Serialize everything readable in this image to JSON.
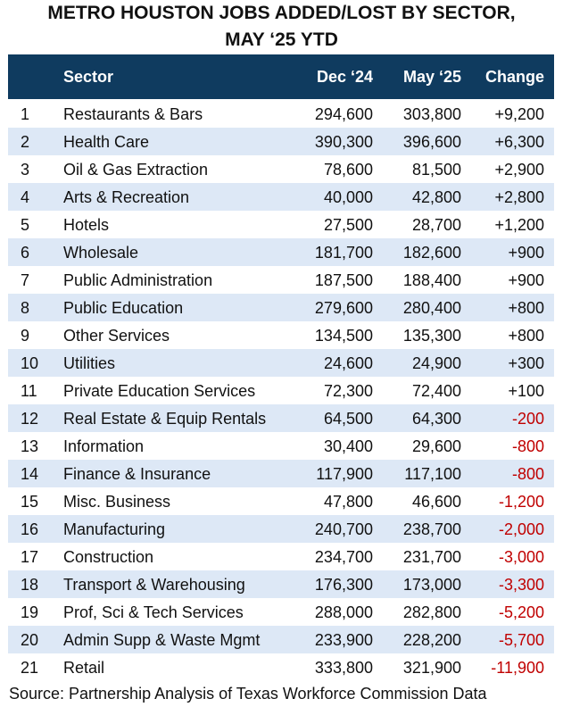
{
  "title_line1": "METRO HOUSTON JOBS ADDED/LOST BY SECTOR,",
  "title_line2": "MAY ‘25 YTD",
  "colors": {
    "header_bg": "#0f3b5f",
    "alt_row": "#dde8f6",
    "negative": "#c00000"
  },
  "chart_data": {
    "type": "table",
    "columns": [
      "",
      "Sector",
      "Dec ‘24",
      "May ‘25",
      "Change"
    ],
    "rows": [
      [
        "1",
        "Restaurants & Bars",
        "294,600",
        "303,800",
        "+9,200"
      ],
      [
        "2",
        "Health Care",
        "390,300",
        "396,600",
        "+6,300"
      ],
      [
        "3",
        "Oil & Gas Extraction",
        "78,600",
        "81,500",
        "+2,900"
      ],
      [
        "4",
        "Arts & Recreation",
        "40,000",
        "42,800",
        "+2,800"
      ],
      [
        "5",
        "Hotels",
        "27,500",
        "28,700",
        "+1,200"
      ],
      [
        "6",
        "Wholesale",
        "181,700",
        "182,600",
        "+900"
      ],
      [
        "7",
        "Public Administration",
        "187,500",
        "188,400",
        "+900"
      ],
      [
        "8",
        "Public Education",
        "279,600",
        "280,400",
        "+800"
      ],
      [
        "9",
        "Other Services",
        "134,500",
        "135,300",
        "+800"
      ],
      [
        "10",
        "Utilities",
        "24,600",
        "24,900",
        "+300"
      ],
      [
        "11",
        "Private Education Services",
        "72,300",
        "72,400",
        "+100"
      ],
      [
        "12",
        "Real Estate & Equip Rentals",
        "64,500",
        "64,300",
        "-200"
      ],
      [
        "13",
        "Information",
        "30,400",
        "29,600",
        "-800"
      ],
      [
        "14",
        "Finance & Insurance",
        "117,900",
        "117,100",
        "-800"
      ],
      [
        "15",
        "Misc. Business",
        "47,800",
        "46,600",
        "-1,200"
      ],
      [
        "16",
        "Manufacturing",
        "240,700",
        "238,700",
        "-2,000"
      ],
      [
        "17",
        "Construction",
        "234,700",
        "231,700",
        "-3,000"
      ],
      [
        "18",
        "Transport & Warehousing",
        "176,300",
        "173,000",
        "-3,300"
      ],
      [
        "19",
        "Prof, Sci & Tech Services",
        "288,000",
        "282,800",
        "-5,200"
      ],
      [
        "20",
        "Admin Supp & Waste Mgmt",
        "233,900",
        "228,200",
        "-5,700"
      ],
      [
        "21",
        "Retail",
        "333,800",
        "321,900",
        "-11,900"
      ]
    ]
  },
  "source": "Source: Partnership Analysis of Texas Workforce Commission Data"
}
